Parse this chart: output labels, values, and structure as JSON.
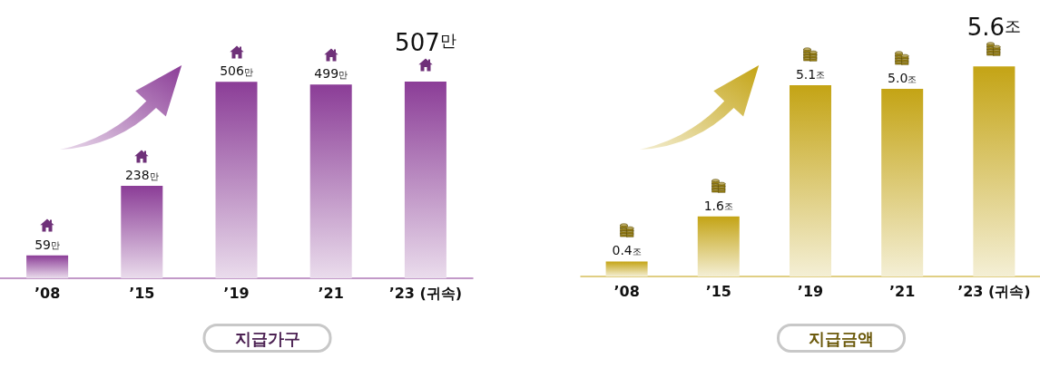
{
  "chart_data": [
    {
      "type": "bar",
      "title": "지급가구",
      "categories": [
        "’08",
        "’15",
        "’19",
        "’21",
        "’23 (귀속)"
      ],
      "values": [
        59,
        238,
        506,
        499,
        507
      ],
      "value_labels": [
        "59만",
        "238만",
        "506만",
        "499만",
        "507만"
      ],
      "color": "#8b3d97"
    },
    {
      "type": "bar",
      "title": "지급금액",
      "categories": [
        "’08",
        "’15",
        "’19",
        "’21",
        "’23 (귀속)"
      ],
      "values": [
        0.4,
        1.6,
        5.1,
        5.0,
        5.6
      ],
      "value_labels": [
        "0.4조",
        "1.6조",
        "5.1조",
        "5.0조",
        "5.6조"
      ],
      "color": "#c4a415"
    }
  ]
}
